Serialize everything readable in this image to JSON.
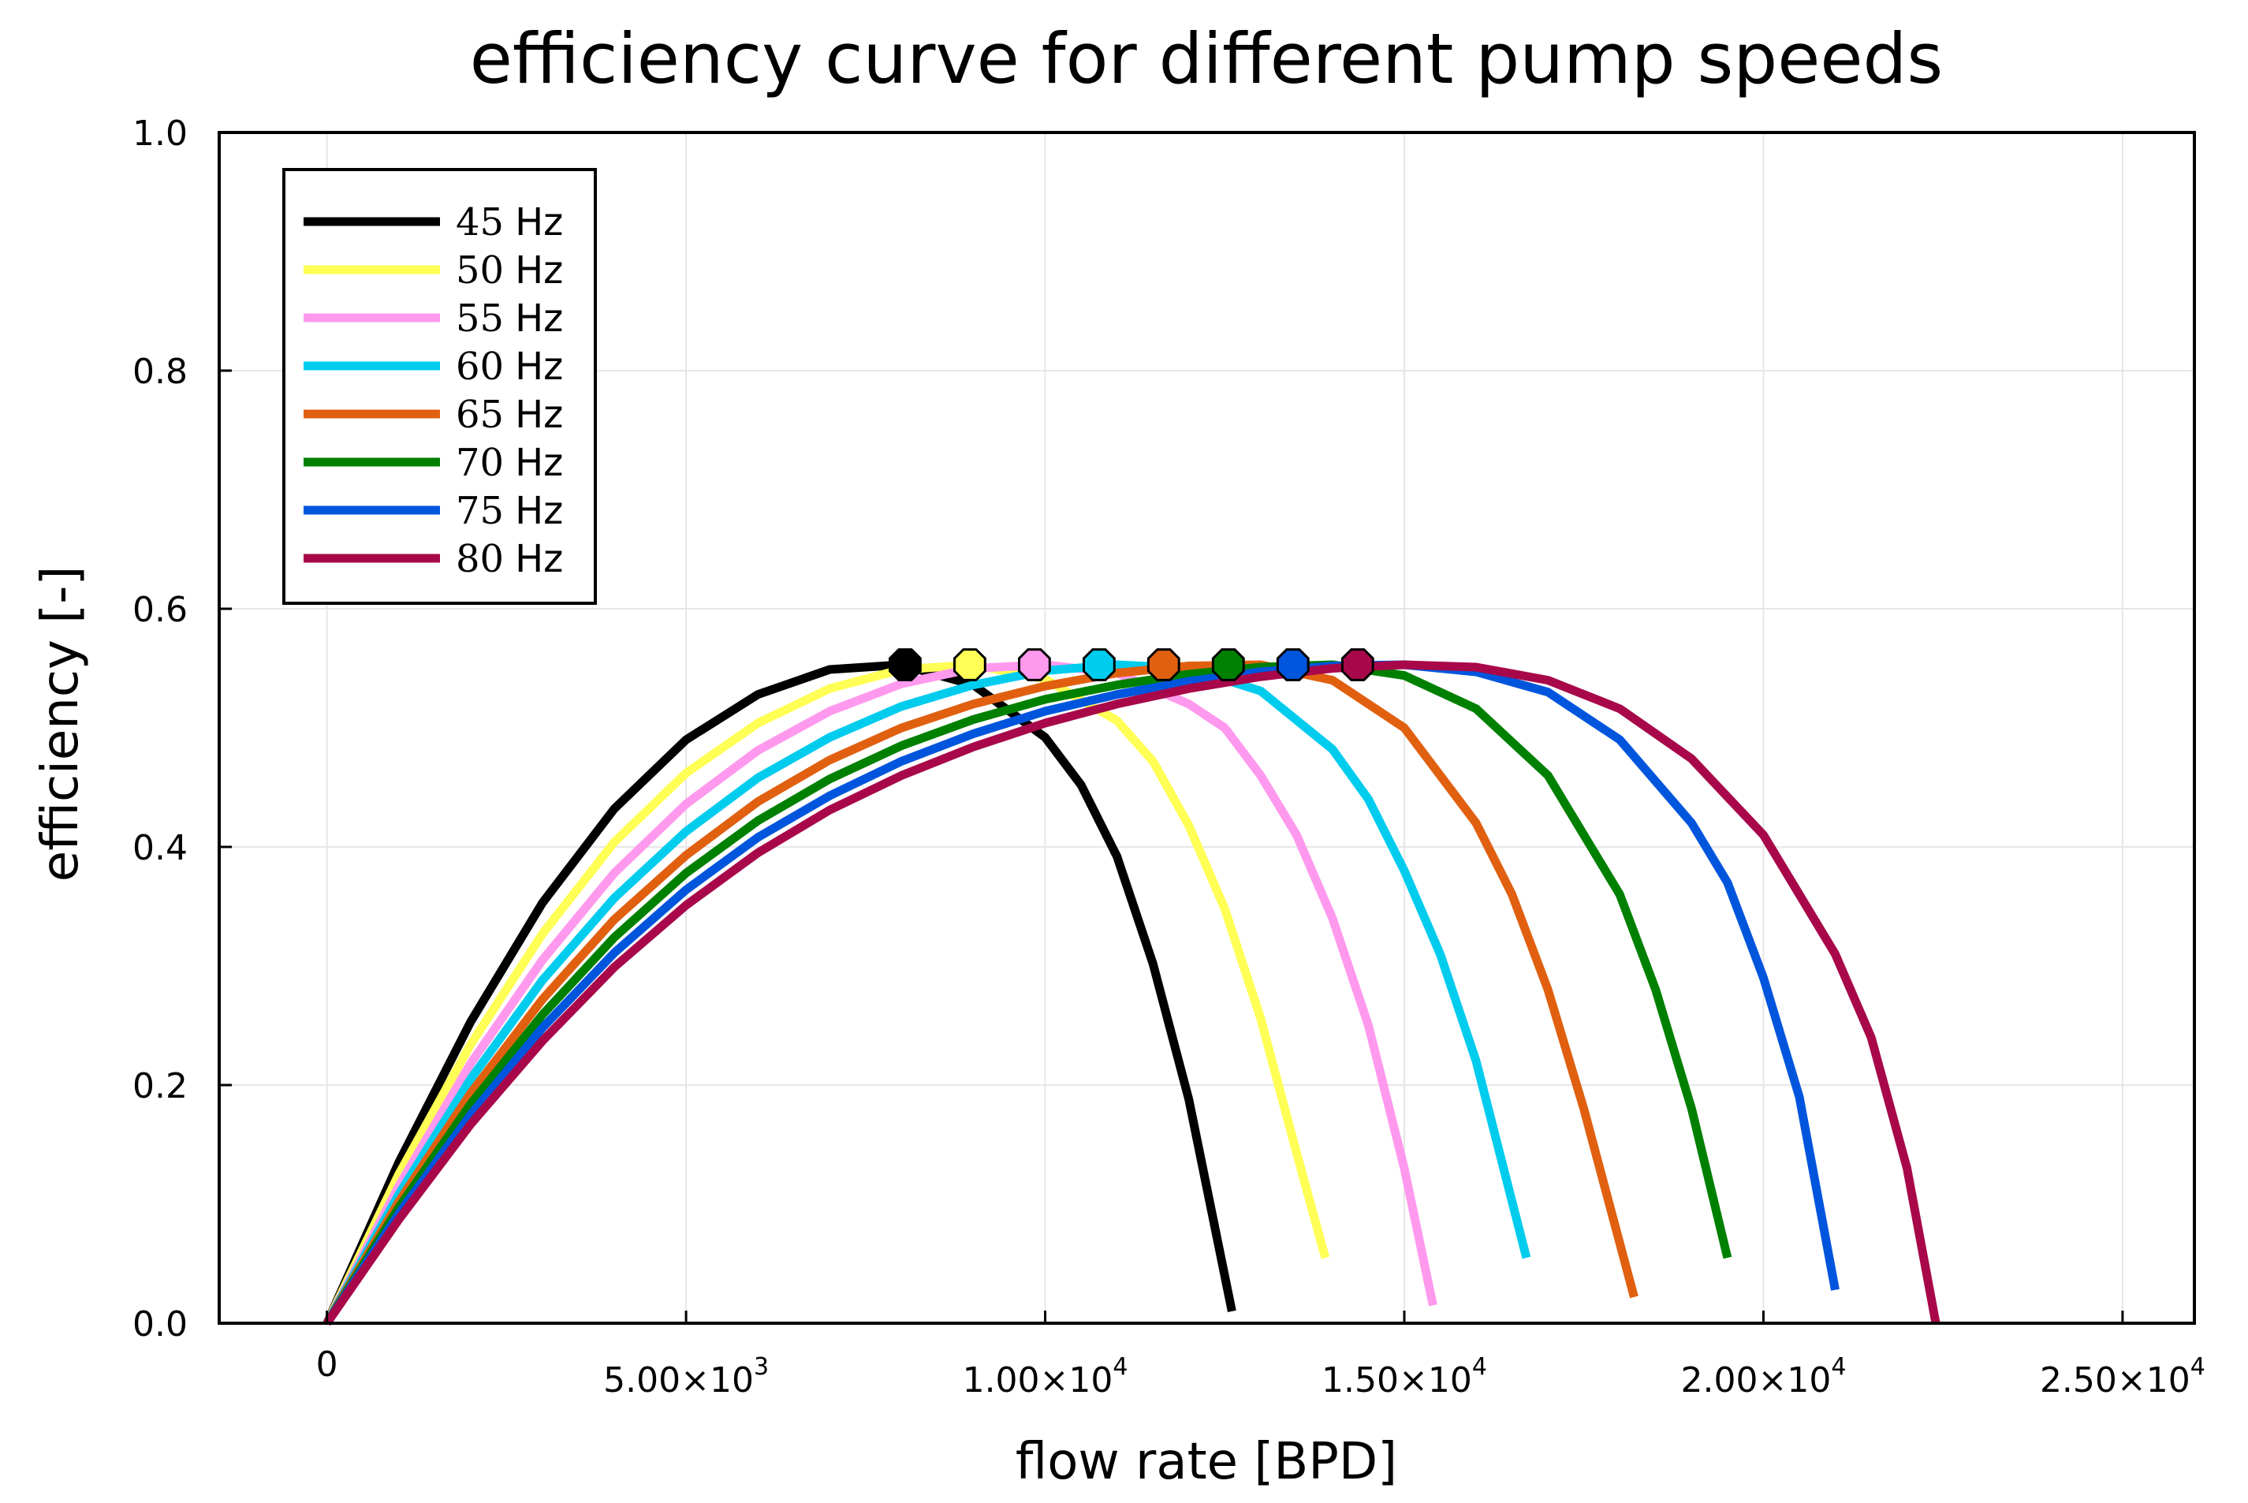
{
  "chart_data": {
    "type": "line",
    "title": "efficiency curve for different pump speeds",
    "xlabel": "flow rate [BPD]",
    "ylabel": "efficiency [-]",
    "xlim": [
      -1500,
      26000
    ],
    "ylim": [
      0,
      1
    ],
    "grid": true,
    "legend_position": "top-left",
    "x_ticks": [
      {
        "value": 0,
        "label": "0"
      },
      {
        "value": 5000,
        "mantissa": "5.00×10",
        "exp": "3"
      },
      {
        "value": 10000,
        "mantissa": "1.00×10",
        "exp": "4"
      },
      {
        "value": 15000,
        "mantissa": "1.50×10",
        "exp": "4"
      },
      {
        "value": 20000,
        "mantissa": "2.00×10",
        "exp": "4"
      },
      {
        "value": 25000,
        "mantissa": "2.50×10",
        "exp": "4"
      }
    ],
    "y_ticks": [
      {
        "value": 0,
        "label": "0.0"
      },
      {
        "value": 0.2,
        "label": "0.2"
      },
      {
        "value": 0.4,
        "label": "0.4"
      },
      {
        "value": 0.6,
        "label": "0.6"
      },
      {
        "value": 0.8,
        "label": "0.8"
      },
      {
        "value": 1.0,
        "label": "1.0"
      }
    ],
    "series": [
      {
        "name": "45 Hz",
        "num": "45",
        "unit": "Hz",
        "color": "#000000",
        "x": [
          0,
          1000,
          2000,
          3000,
          4000,
          5000,
          6000,
          7000,
          8000,
          9000,
          10000,
          10500,
          11000,
          11500,
          12000,
          12600
        ],
        "y": [
          0.0,
          0.135,
          0.253,
          0.353,
          0.432,
          0.49,
          0.528,
          0.549,
          0.553,
          0.536,
          0.492,
          0.452,
          0.392,
          0.302,
          0.188,
          0.01
        ],
        "bep": [
          8050,
          0.553
        ]
      },
      {
        "name": "50 Hz",
        "num": "50",
        "unit": "Hz",
        "color": "#ffff55",
        "x": [
          0,
          1000,
          2000,
          3000,
          4000,
          5000,
          6000,
          7000,
          8000,
          9000,
          10000,
          11000,
          11500,
          12000,
          12500,
          13000,
          13500,
          13900
        ],
        "y": [
          0.0,
          0.125,
          0.234,
          0.327,
          0.404,
          0.462,
          0.504,
          0.533,
          0.549,
          0.553,
          0.541,
          0.506,
          0.472,
          0.418,
          0.348,
          0.256,
          0.143,
          0.055
        ],
        "bep": [
          8950,
          0.553
        ]
      },
      {
        "name": "55 Hz",
        "num": "55",
        "unit": "Hz",
        "color": "#ff99ee",
        "x": [
          0,
          1000,
          2000,
          3000,
          4000,
          5000,
          6000,
          7000,
          8000,
          9000,
          10000,
          11000,
          12000,
          12500,
          13000,
          13500,
          14000,
          14500,
          15000,
          15400
        ],
        "y": [
          0.0,
          0.115,
          0.218,
          0.305,
          0.378,
          0.436,
          0.481,
          0.514,
          0.537,
          0.55,
          0.553,
          0.546,
          0.52,
          0.5,
          0.46,
          0.41,
          0.34,
          0.25,
          0.13,
          0.015
        ],
        "bep": [
          9850,
          0.553
        ]
      },
      {
        "name": "60 Hz",
        "num": "60",
        "unit": "Hz",
        "color": "#00ccee",
        "x": [
          0,
          1000,
          2000,
          3000,
          4000,
          5000,
          6000,
          7000,
          8000,
          9000,
          10000,
          11000,
          12000,
          13000,
          14000,
          14500,
          15000,
          15500,
          16000,
          16700
        ],
        "y": [
          0.0,
          0.108,
          0.205,
          0.288,
          0.357,
          0.413,
          0.458,
          0.492,
          0.518,
          0.536,
          0.548,
          0.553,
          0.55,
          0.531,
          0.482,
          0.44,
          0.38,
          0.31,
          0.22,
          0.055
        ],
        "bep": [
          10750,
          0.553
        ]
      },
      {
        "name": "65 Hz",
        "num": "65",
        "unit": "Hz",
        "color": "#e06010",
        "x": [
          0,
          1000,
          2000,
          3000,
          4000,
          5000,
          6000,
          7000,
          8000,
          9000,
          10000,
          11000,
          12000,
          13000,
          14000,
          15000,
          16000,
          16500,
          17000,
          17500,
          18200
        ],
        "y": [
          0.0,
          0.102,
          0.193,
          0.272,
          0.339,
          0.393,
          0.438,
          0.473,
          0.5,
          0.52,
          0.535,
          0.546,
          0.552,
          0.553,
          0.54,
          0.5,
          0.42,
          0.36,
          0.28,
          0.18,
          0.022
        ],
        "bep": [
          11650,
          0.553
        ]
      },
      {
        "name": "70 Hz",
        "num": "70",
        "unit": "Hz",
        "color": "#008000",
        "x": [
          0,
          1000,
          2000,
          3000,
          4000,
          5000,
          6000,
          7000,
          8000,
          9000,
          10000,
          11000,
          12000,
          13000,
          14000,
          15000,
          16000,
          17000,
          18000,
          18500,
          19000,
          19500
        ],
        "y": [
          0.0,
          0.097,
          0.184,
          0.259,
          0.324,
          0.378,
          0.422,
          0.457,
          0.485,
          0.507,
          0.524,
          0.536,
          0.545,
          0.551,
          0.553,
          0.544,
          0.516,
          0.46,
          0.36,
          0.28,
          0.18,
          0.055
        ],
        "bep": [
          12550,
          0.553
        ]
      },
      {
        "name": "75 Hz",
        "num": "75",
        "unit": "Hz",
        "color": "#0055dd",
        "x": [
          0,
          1000,
          2000,
          3000,
          4000,
          5000,
          6000,
          7000,
          8000,
          9000,
          10000,
          11000,
          12000,
          13000,
          14000,
          15000,
          16000,
          17000,
          18000,
          19000,
          19500,
          20000,
          20500,
          21000
        ],
        "y": [
          0.0,
          0.092,
          0.175,
          0.248,
          0.311,
          0.364,
          0.408,
          0.443,
          0.472,
          0.495,
          0.514,
          0.528,
          0.539,
          0.547,
          0.552,
          0.553,
          0.547,
          0.53,
          0.49,
          0.42,
          0.37,
          0.29,
          0.19,
          0.028
        ],
        "bep": [
          13450,
          0.553
        ]
      },
      {
        "name": "80 Hz",
        "num": "80",
        "unit": "Hz",
        "color": "#a8084a",
        "x": [
          0,
          1000,
          2000,
          3000,
          4000,
          5000,
          6000,
          7000,
          8000,
          9000,
          10000,
          11000,
          12000,
          13000,
          14000,
          15000,
          16000,
          17000,
          18000,
          19000,
          20000,
          21000,
          21500,
          22000,
          22400
        ],
        "y": [
          0.0,
          0.087,
          0.167,
          0.237,
          0.299,
          0.351,
          0.395,
          0.431,
          0.46,
          0.484,
          0.504,
          0.52,
          0.533,
          0.543,
          0.55,
          0.553,
          0.551,
          0.54,
          0.516,
          0.474,
          0.41,
          0.31,
          0.24,
          0.13,
          0.0
        ],
        "bep": [
          14350,
          0.553
        ]
      }
    ]
  }
}
